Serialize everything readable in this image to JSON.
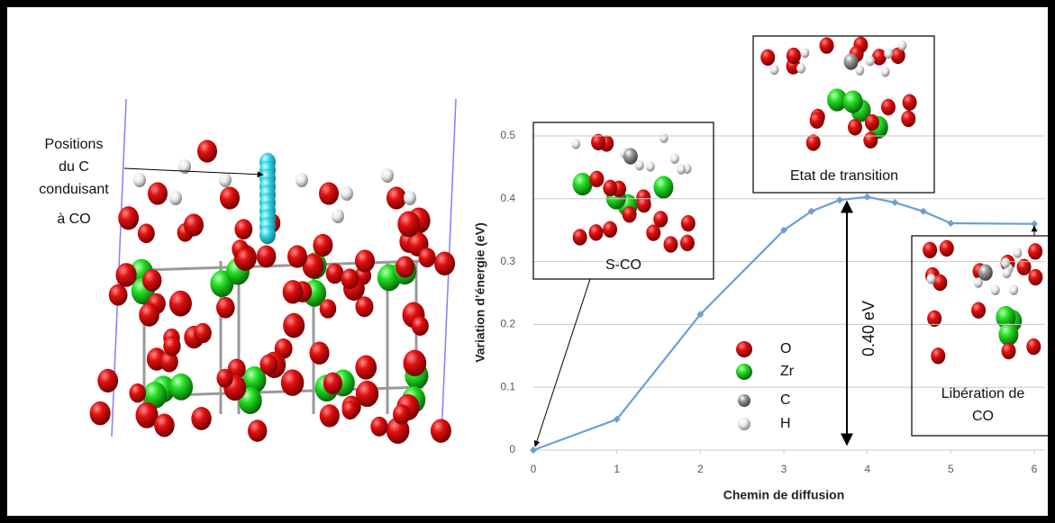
{
  "chart_data": {
    "type": "line",
    "x_label": "Chemin de diffusion",
    "y_label": "Variation d’énergie (eV)",
    "x": [
      0,
      1,
      2,
      3,
      3.33,
      3.67,
      4,
      4.33,
      4.67,
      5,
      6
    ],
    "values": [
      0,
      0.049,
      0.216,
      0.35,
      0.38,
      0.398,
      0.403,
      0.394,
      0.38,
      0.361,
      0.36
    ],
    "color": "#6a9fd4",
    "xlim": [
      0,
      6
    ],
    "ylim": [
      0,
      0.5
    ],
    "xticks": [
      0,
      1,
      2,
      3,
      4,
      5,
      6
    ],
    "yticks": [
      0,
      0.1,
      0.2,
      0.3,
      0.4,
      0.5
    ],
    "grid": true,
    "annotations": {
      "positions_c": [
        "Positions",
        "du C",
        "conduisant",
        "à CO"
      ],
      "barrier": "0.40 eV",
      "initial": "S-CO",
      "transition": "Etat de transition",
      "final": [
        "Libération de",
        "CO"
      ]
    },
    "atom_legend": [
      {
        "label": "O",
        "color": "#e01010"
      },
      {
        "label": "Zr",
        "color": "#22dd22"
      },
      {
        "label": "C",
        "color": "#9a9a9a"
      },
      {
        "label": "H",
        "color": "#e8e8e8"
      }
    ]
  }
}
